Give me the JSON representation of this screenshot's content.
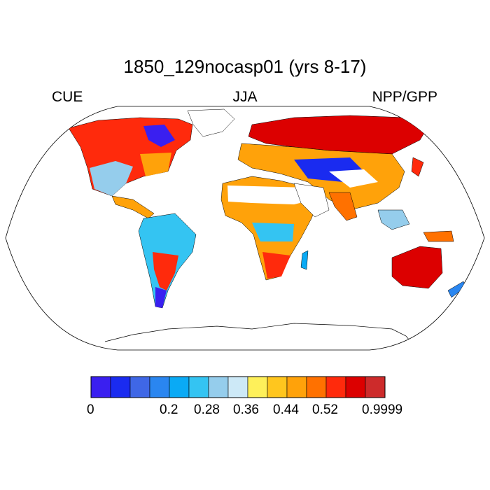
{
  "title": "1850_129nocasp01 (yrs 8-17)",
  "subtitles": {
    "left": "CUE",
    "center": "JJA",
    "right": "NPP/GPP"
  },
  "colorbar": {
    "colors": [
      "#3a1ff0",
      "#1a2bf0",
      "#3f67e6",
      "#2a86f0",
      "#0aaaf5",
      "#34c4f2",
      "#95cdec",
      "#cde9f7",
      "#fef05a",
      "#ffc61e",
      "#ffa20a",
      "#ff7100",
      "#ff2a0c",
      "#dc0000",
      "#cd2b2b"
    ],
    "tick_labels": [
      "0",
      "0.2",
      "0.28",
      "0.36",
      "0.44",
      "0.52",
      "0.9999"
    ]
  },
  "map": {
    "projection": "Robinson",
    "variable": "CUE",
    "season": "JJA",
    "no_data_color": "#ffffff"
  }
}
